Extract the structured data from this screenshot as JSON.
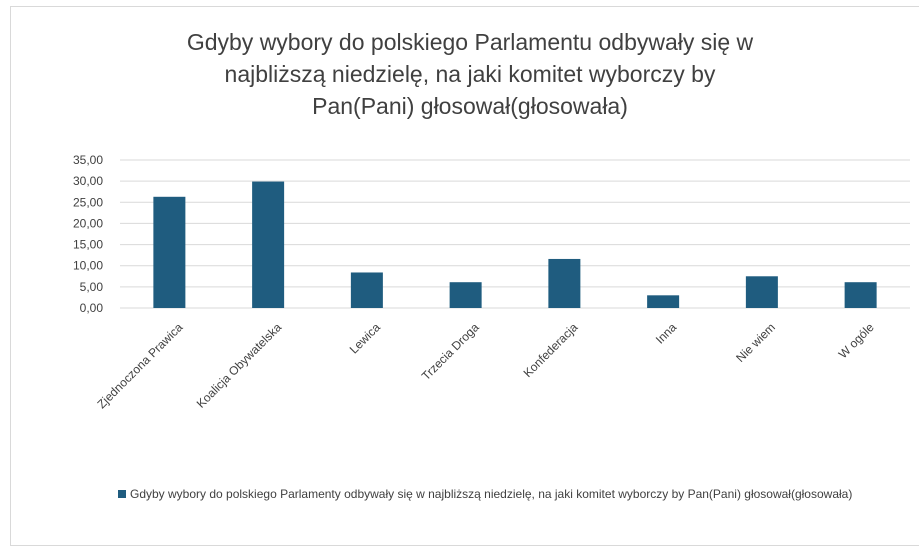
{
  "chart_data": {
    "type": "bar",
    "title": [
      "Gdyby wybory do polskiego Parlamentu odbywały się w",
      "najbliższą niedzielę, na jaki komitet wyborczy by",
      "Pan(Pani) głosował(głosowała)"
    ],
    "categories": [
      "Zjednoczona Prawica",
      "Koalicja Obywatelska",
      "Lewica",
      "Trzecia Droga",
      "Konfederacja",
      "Inna",
      "Nie wiem",
      "W ogóle"
    ],
    "series": [
      {
        "name": "Gdyby wybory do polskiego Parlamenty odbywały się w najbliższą niedzielę, na jaki komitet wyborczy by Pan(Pani) głosował(głosowała)",
        "values": [
          26.3,
          29.9,
          8.4,
          6.1,
          11.6,
          3.0,
          7.5,
          6.1
        ]
      }
    ],
    "yticks": [
      "0,00",
      "5,00",
      "10,00",
      "15,00",
      "20,00",
      "25,00",
      "30,00",
      "35,00"
    ],
    "ylim": [
      0,
      35
    ],
    "grid": true,
    "legend_position": "bottom",
    "colors": {
      "bar": "#1f5c7f",
      "grid": "#d9d9d9",
      "text": "#404040"
    }
  }
}
